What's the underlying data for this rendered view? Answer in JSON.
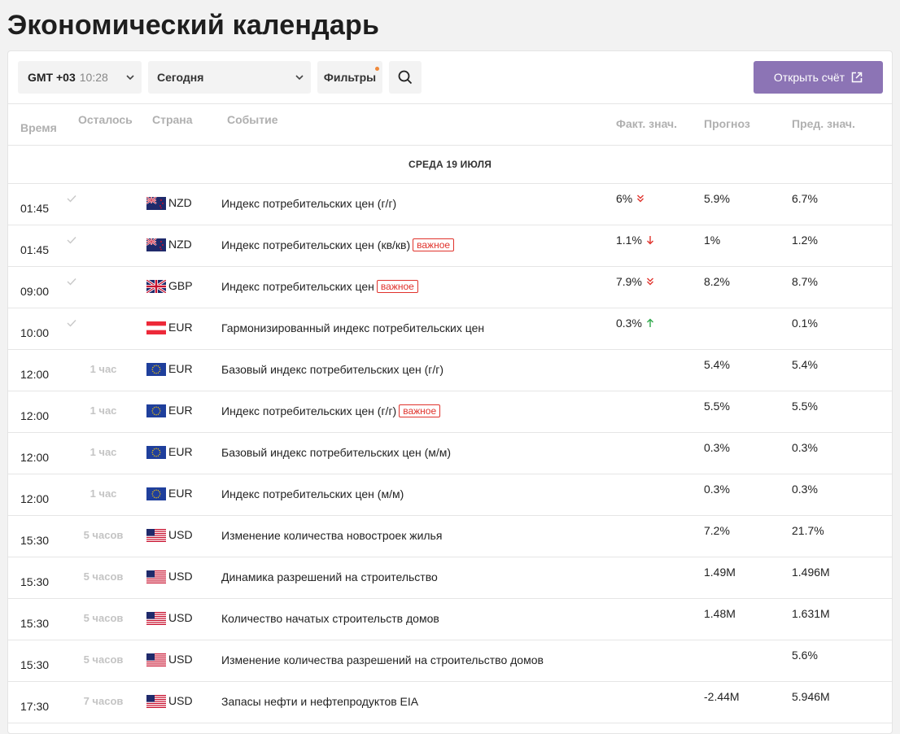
{
  "page_title": "Экономический календарь",
  "toolbar": {
    "gmt": "GMT +03",
    "time": "10:28",
    "date_filter": "Сегодня",
    "filters_label": "Фильтры",
    "open_account_label": "Открыть счёт"
  },
  "table": {
    "headers": {
      "time": "Время",
      "left": "Осталось",
      "country": "Страна",
      "event": "Событие",
      "actual": "Факт. знач.",
      "forecast": "Прогноз",
      "previous": "Пред. знач."
    },
    "day_label": "СРЕДА 19 ИЮЛЯ",
    "important_label": "важное",
    "rows": [
      {
        "time": "01:45",
        "left": "",
        "flag": "nz",
        "currency": "NZD",
        "event": "Индекс потребительских цен (г/г)",
        "important": false,
        "actual": "6%",
        "trend": "down-double",
        "forecast": "5.9%",
        "previous": "6.7%"
      },
      {
        "time": "01:45",
        "left": "",
        "flag": "nz",
        "currency": "NZD",
        "event": "Индекс потребительских цен (кв/кв)",
        "important": true,
        "actual": "1.1%",
        "trend": "down",
        "forecast": "1%",
        "previous": "1.2%"
      },
      {
        "time": "09:00",
        "left": "",
        "flag": "gb",
        "currency": "GBP",
        "event": "Индекс потребительских цен",
        "important": true,
        "actual": "7.9%",
        "trend": "down-double",
        "forecast": "8.2%",
        "previous": "8.7%"
      },
      {
        "time": "10:00",
        "left": "",
        "flag": "at",
        "currency": "EUR",
        "event": "Гармонизированный индекс потребительских цен",
        "important": false,
        "actual": "0.3%",
        "trend": "up",
        "forecast": "",
        "previous": "0.1%"
      },
      {
        "time": "12:00",
        "left": "1 час",
        "flag": "eu",
        "currency": "EUR",
        "event": "Базовый индекс потребительских цен (г/г)",
        "important": false,
        "actual": "",
        "trend": "",
        "forecast": "5.4%",
        "previous": "5.4%"
      },
      {
        "time": "12:00",
        "left": "1 час",
        "flag": "eu",
        "currency": "EUR",
        "event": "Индекс потребительских цен (г/г)",
        "important": true,
        "actual": "",
        "trend": "",
        "forecast": "5.5%",
        "previous": "5.5%"
      },
      {
        "time": "12:00",
        "left": "1 час",
        "flag": "eu",
        "currency": "EUR",
        "event": "Базовый индекс потребительских цен (м/м)",
        "important": false,
        "actual": "",
        "trend": "",
        "forecast": "0.3%",
        "previous": "0.3%"
      },
      {
        "time": "12:00",
        "left": "1 час",
        "flag": "eu",
        "currency": "EUR",
        "event": "Индекс потребительских цен (м/м)",
        "important": false,
        "actual": "",
        "trend": "",
        "forecast": "0.3%",
        "previous": "0.3%"
      },
      {
        "time": "15:30",
        "left": "5 часов",
        "flag": "us",
        "currency": "USD",
        "event": "Изменение количества новостроек жилья",
        "important": false,
        "actual": "",
        "trend": "",
        "forecast": "7.2%",
        "previous": "21.7%"
      },
      {
        "time": "15:30",
        "left": "5 часов",
        "flag": "us",
        "currency": "USD",
        "event": "Динамика разрешений на строительство",
        "important": false,
        "actual": "",
        "trend": "",
        "forecast": "1.49M",
        "previous": "1.496M"
      },
      {
        "time": "15:30",
        "left": "5 часов",
        "flag": "us",
        "currency": "USD",
        "event": "Количество начатых строительств домов",
        "important": false,
        "actual": "",
        "trend": "",
        "forecast": "1.48M",
        "previous": "1.631M"
      },
      {
        "time": "15:30",
        "left": "5 часов",
        "flag": "us",
        "currency": "USD",
        "event": "Изменение количества разрешений на строительство домов",
        "important": false,
        "actual": "",
        "trend": "",
        "forecast": "",
        "previous": "5.6%"
      },
      {
        "time": "17:30",
        "left": "7 часов",
        "flag": "us",
        "currency": "USD",
        "event": "Запасы нефти и нефтепродуктов EIA",
        "important": false,
        "actual": "",
        "trend": "",
        "forecast": "-2.44M",
        "previous": "5.946M"
      }
    ]
  },
  "colors": {
    "accent": "#8c74b5",
    "important": "#e0332c",
    "trend_down": "#e0332c",
    "trend_up": "#2ea84a",
    "muted": "#b0b0b0"
  }
}
